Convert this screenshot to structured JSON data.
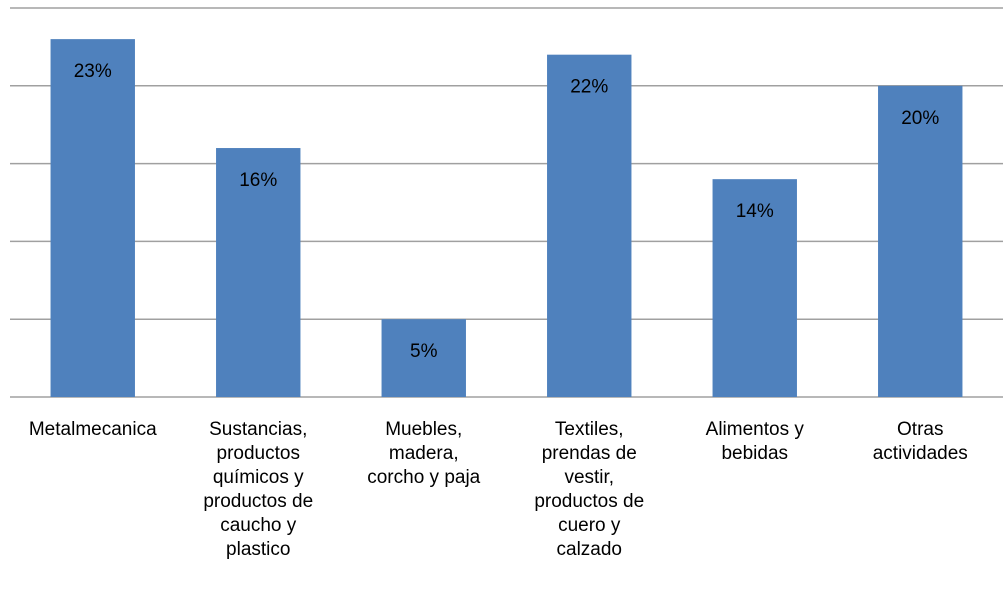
{
  "chart_data": {
    "type": "bar",
    "categories": [
      "Metalmecanica",
      "Sustancias, productos químicos y productos de caucho y plastico",
      "Muebles, madera, corcho y paja",
      "Textiles, prendas de vestir, productos de cuero y calzado",
      "Alimentos y bebidas",
      "Otras actividades"
    ],
    "values": [
      23,
      16,
      5,
      22,
      14,
      20
    ],
    "value_labels": [
      "23%",
      "16%",
      "5%",
      "22%",
      "14%",
      "20%"
    ],
    "color": "#4f81bd",
    "ylim": [
      0,
      25
    ],
    "yticks": [
      0,
      5,
      10,
      15,
      20,
      25
    ],
    "grid": true
  }
}
